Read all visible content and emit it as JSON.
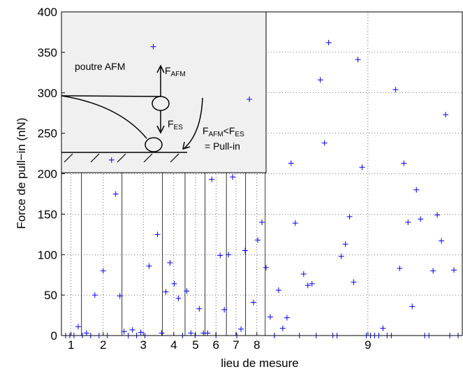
{
  "chart_data": {
    "type": "scatter",
    "x_label": "lieu de mesure",
    "y_label": "Force de pull−in (nN)",
    "xlim": [
      0,
      96
    ],
    "ylim": [
      0,
      400
    ],
    "yticks": [
      0,
      50,
      100,
      150,
      200,
      250,
      300,
      350,
      400
    ],
    "xticks": [
      {
        "value": 2.3,
        "label": "1"
      },
      {
        "value": 10,
        "label": "2"
      },
      {
        "value": 19.6,
        "label": "3"
      },
      {
        "value": 26.9,
        "label": "4"
      },
      {
        "value": 32.1,
        "label": "5"
      },
      {
        "value": 37,
        "label": "6"
      },
      {
        "value": 41.8,
        "label": "7"
      },
      {
        "value": 46.8,
        "label": "8"
      },
      {
        "value": 73.4,
        "label": "9"
      }
    ],
    "separators": [
      4.8,
      14.5,
      24.2,
      29.6,
      34.4,
      39.5,
      44.1,
      48.8
    ],
    "grid": true,
    "marker": "+",
    "color": "#0000ff",
    "x": [
      1,
      2,
      3,
      4,
      5,
      6,
      7,
      8,
      9,
      10,
      11,
      12,
      13,
      14,
      15,
      16,
      17,
      18,
      19,
      20,
      21,
      22,
      23,
      24,
      25,
      26,
      27,
      28,
      29,
      30,
      31,
      32,
      33,
      34,
      35,
      36,
      37,
      38,
      39,
      40,
      41,
      42,
      43,
      44,
      45,
      46,
      47,
      48,
      49,
      50,
      51,
      52,
      53,
      54,
      55,
      56,
      57,
      58,
      59,
      60,
      61,
      62,
      63,
      64,
      65,
      66,
      67,
      68,
      69,
      70,
      71,
      72,
      73,
      74,
      75,
      76,
      77,
      78,
      79,
      80,
      81,
      82,
      83,
      84,
      85,
      86,
      87,
      88,
      89,
      90,
      91,
      92,
      93,
      94,
      95
    ],
    "values": [
      0,
      0,
      0,
      11,
      0,
      3,
      0,
      50,
      0,
      80,
      0,
      217,
      175,
      49,
      5,
      0,
      7,
      0,
      4,
      0,
      86,
      357,
      125,
      3,
      54,
      90,
      64,
      46,
      0,
      55,
      3,
      0,
      33,
      3,
      3,
      193,
      0,
      99,
      32,
      100,
      196,
      0,
      8,
      105,
      292,
      41,
      118,
      140,
      84,
      23,
      0,
      56,
      9,
      22,
      213,
      139,
      0,
      76,
      62,
      64,
      0,
      316,
      238,
      362,
      0,
      0,
      98,
      113,
      147,
      66,
      341,
      208,
      0,
      0,
      0,
      0,
      9,
      0,
      0,
      304,
      83,
      213,
      140,
      36,
      180,
      144,
      0,
      0,
      80,
      149,
      117,
      273,
      0,
      81,
      0
    ],
    "inset": {
      "beam_label": "poutre AFM",
      "force_top": {
        "main": "F",
        "sub": "AFM"
      },
      "force_bottom": {
        "main": "F",
        "sub": "ES"
      },
      "condition": [
        {
          "main": "F",
          "sub": "AFM"
        },
        {
          "main": "<F",
          "sub": "ES"
        }
      ],
      "result": "= Pull-in"
    }
  }
}
